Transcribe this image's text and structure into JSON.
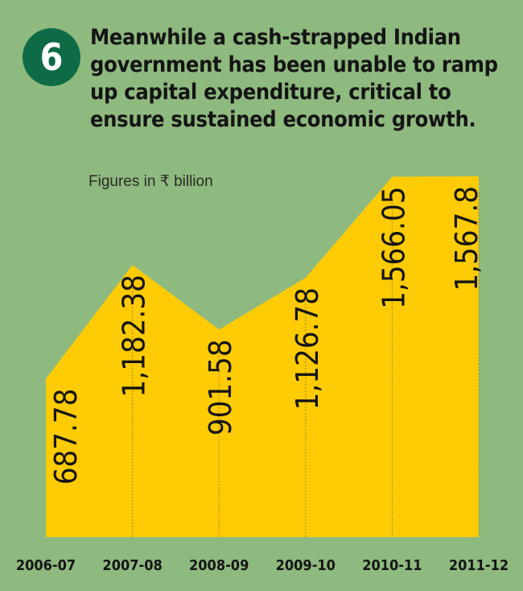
{
  "badge_number": "6",
  "headline": "Meanwhile a cash-strapped Indian government has been unable to ramp up capital expenditure, critical to ensure sustained economic growth.",
  "colors": {
    "background": "#8fba7f",
    "area_fill": "#ffcb05",
    "badge": "#0e6b45",
    "text": "#141414",
    "guide_line": "#9a8a30"
  },
  "chart_data": {
    "type": "area",
    "unit_note": "Figures in ₹ billion",
    "categories": [
      "2006-07",
      "2007-08",
      "2008-09",
      "2009-10",
      "2010-11",
      "2011-12"
    ],
    "values": [
      687.78,
      1182.38,
      901.58,
      1126.78,
      1566.05,
      1567.8
    ],
    "value_labels": [
      "687.78",
      "1,182.38",
      "901.58",
      "1,126.78",
      "1,566.05",
      "1,567.8"
    ],
    "xlabel": "",
    "ylabel": "",
    "ylim": [
      0,
      1567.8
    ],
    "grid": false,
    "legend": "none"
  }
}
